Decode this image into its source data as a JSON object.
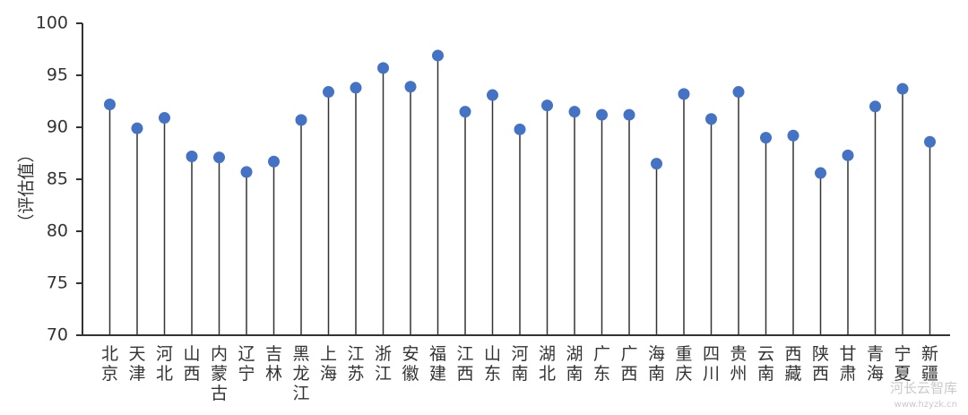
{
  "chart_data": {
    "type": "scatter",
    "style": "lollipop",
    "ylabel": "（评估值）",
    "ylim": [
      70,
      100
    ],
    "yticks": [
      70,
      75,
      80,
      85,
      90,
      95,
      100
    ],
    "grid": false,
    "categories": [
      "北京",
      "天津",
      "河北",
      "山西",
      "内蒙古",
      "辽宁",
      "吉林",
      "黑龙江",
      "上海",
      "江苏",
      "浙江",
      "安徽",
      "福建",
      "江西",
      "山东",
      "河南",
      "湖北",
      "湖南",
      "广东",
      "广西",
      "海南",
      "重庆",
      "四川",
      "贵州",
      "云南",
      "西藏",
      "陕西",
      "甘肃",
      "青海",
      "宁夏",
      "新疆"
    ],
    "values": [
      92.2,
      89.9,
      90.9,
      87.2,
      87.1,
      85.7,
      86.7,
      90.7,
      93.4,
      93.8,
      95.7,
      93.9,
      96.9,
      91.5,
      93.1,
      89.8,
      92.1,
      91.5,
      91.2,
      91.2,
      86.5,
      93.2,
      90.8,
      93.4,
      89.0,
      89.2,
      85.6,
      87.3,
      92.0,
      93.7,
      88.6
    ],
    "colors": {
      "marker": "#4472c4",
      "stem": "#333333",
      "axis": "#333333"
    }
  },
  "watermark": {
    "text": "河长云智库",
    "url": "www.hzyzk.cn"
  }
}
